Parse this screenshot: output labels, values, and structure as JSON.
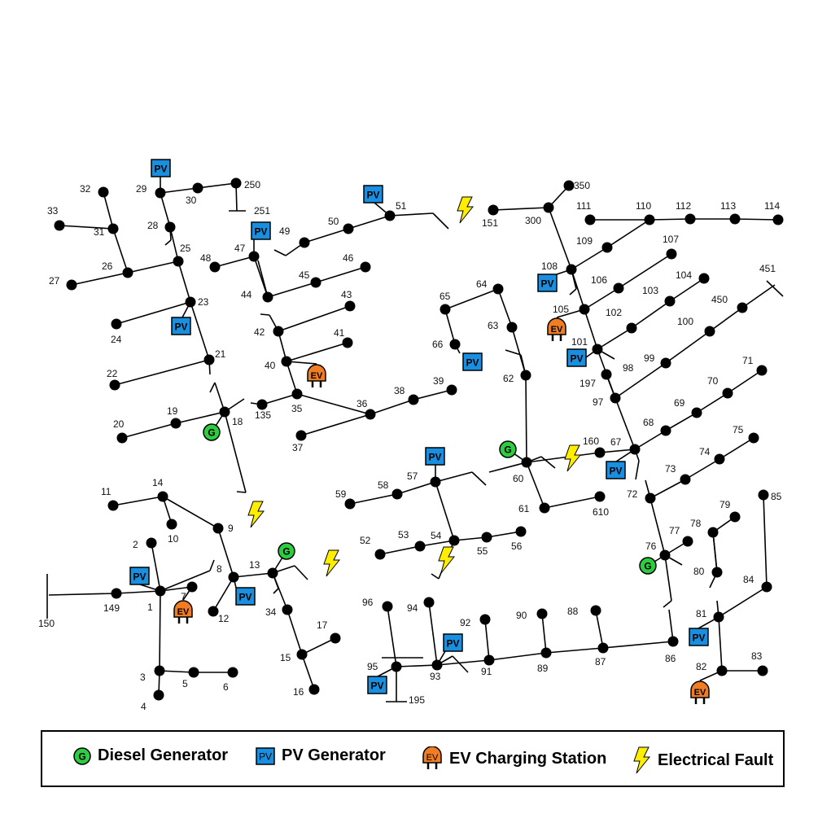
{
  "diagram": {
    "nodes": [
      "1",
      "2",
      "3",
      "4",
      "5",
      "6",
      "7",
      "8",
      "9",
      "10",
      "11",
      "12",
      "13",
      "14",
      "15",
      "16",
      "17",
      "18",
      "19",
      "20",
      "21",
      "22",
      "23",
      "24",
      "25",
      "26",
      "27",
      "28",
      "29",
      "30",
      "31",
      "32",
      "33",
      "34",
      "35",
      "36",
      "37",
      "38",
      "39",
      "40",
      "41",
      "42",
      "43",
      "44",
      "45",
      "46",
      "47",
      "48",
      "49",
      "50",
      "51",
      "52",
      "53",
      "54",
      "55",
      "56",
      "57",
      "58",
      "59",
      "60",
      "61",
      "62",
      "63",
      "64",
      "65",
      "66",
      "67",
      "68",
      "69",
      "70",
      "71",
      "72",
      "73",
      "74",
      "75",
      "76",
      "77",
      "78",
      "79",
      "80",
      "81",
      "82",
      "83",
      "84",
      "85",
      "86",
      "87",
      "88",
      "89",
      "90",
      "91",
      "92",
      "93",
      "94",
      "95",
      "96",
      "97",
      "98",
      "99",
      "100",
      "101",
      "102",
      "103",
      "104",
      "105",
      "106",
      "107",
      "108",
      "109",
      "110",
      "111",
      "112",
      "113",
      "114",
      "135",
      "149",
      "150",
      "151",
      "160",
      "195",
      "197",
      "250",
      "251",
      "300",
      "350",
      "450",
      "451",
      "610"
    ],
    "pv_label": "PV",
    "ev_label": "EV",
    "generator_label": "G"
  },
  "legend": {
    "diesel_generator": "Diesel Generator",
    "pv_generator": "PV Generator",
    "ev_charging_station": "EV Charging Station",
    "electrical_fault": "Electrical Fault"
  },
  "colors": {
    "generator": "#2ecc40",
    "pv": "#1a8fe0",
    "ev": "#f07c24",
    "fault": "#ffee00"
  }
}
